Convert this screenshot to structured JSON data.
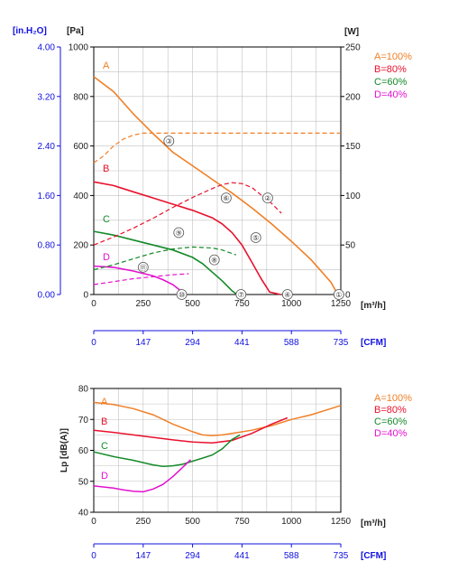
{
  "colors": {
    "A": "#f07f26",
    "B": "#e8112d",
    "C": "#148a28",
    "D": "#e311cf",
    "blue_axis": "#1010e0",
    "grid": "#c0c0c0",
    "text": "#222222"
  },
  "chart_data": [
    {
      "type": "line",
      "title": "",
      "x_unit": "[m³/h]",
      "x_ticks": [
        "0",
        "250",
        "500",
        "750",
        "1000",
        "1250"
      ],
      "xlim": [
        0,
        1250
      ],
      "y_left_unit_inh2o": "[in.H₂O]",
      "y_left_ticks_inh2o": [
        "4.00",
        "3.20",
        "2.40",
        "1.60",
        "0.80",
        "0.00"
      ],
      "y_left_unit_pa": "[Pa]",
      "y_left_ticks_pa": [
        "1000",
        "800",
        "600",
        "400",
        "200",
        "0"
      ],
      "ylim_pa": [
        0,
        1000
      ],
      "y_right_unit": "[W]",
      "y_right_ticks": [
        "250",
        "200",
        "150",
        "100",
        "50",
        "0"
      ],
      "ylim_w": [
        0,
        250
      ],
      "cfm_unit": "[CFM]",
      "cfm_ticks": [
        "0",
        "147",
        "294",
        "441",
        "588",
        "735"
      ],
      "legend": [
        "A=100%",
        "B=80%",
        "C=60%",
        "D=40%"
      ],
      "series": [
        {
          "name": "A",
          "kind": "pressure",
          "x": [
            0,
            100,
            200,
            300,
            400,
            500,
            600,
            700,
            800,
            900,
            1000,
            1100,
            1200,
            1235
          ],
          "y": [
            880,
            820,
            730,
            650,
            575,
            520,
            465,
            410,
            350,
            285,
            215,
            140,
            50,
            0
          ]
        },
        {
          "name": "B",
          "kind": "pressure",
          "x": [
            0,
            100,
            200,
            300,
            400,
            500,
            600,
            650,
            700,
            750,
            800,
            850,
            890,
            945
          ],
          "y": [
            455,
            440,
            415,
            390,
            365,
            340,
            310,
            285,
            250,
            200,
            130,
            60,
            10,
            0
          ]
        },
        {
          "name": "C",
          "kind": "pressure",
          "x": [
            0,
            100,
            200,
            300,
            400,
            500,
            550,
            600,
            650,
            700,
            725
          ],
          "y": [
            255,
            240,
            220,
            200,
            180,
            150,
            125,
            90,
            55,
            15,
            0
          ]
        },
        {
          "name": "D",
          "kind": "pressure",
          "x": [
            0,
            100,
            200,
            300,
            350,
            400,
            440,
            470
          ],
          "y": [
            115,
            110,
            95,
            75,
            60,
            40,
            15,
            0
          ]
        },
        {
          "name": "A",
          "kind": "power",
          "x": [
            0,
            50,
            100,
            150,
            200,
            250,
            300,
            400,
            600,
            800,
            1000,
            1250
          ],
          "y": [
            133,
            140,
            150,
            157,
            161,
            163,
            163,
            163,
            163,
            163,
            163,
            163
          ]
        },
        {
          "name": "B",
          "kind": "power",
          "x": [
            0,
            100,
            200,
            300,
            400,
            500,
            600,
            650,
            700,
            750,
            800,
            850,
            900,
            950
          ],
          "y": [
            50,
            58,
            67,
            77,
            88,
            98,
            107,
            111,
            113,
            112,
            108,
            100,
            92,
            82
          ]
        },
        {
          "name": "C",
          "kind": "power",
          "x": [
            0,
            100,
            200,
            300,
            400,
            500,
            600,
            650,
            720
          ],
          "y": [
            25,
            30,
            36,
            42,
            46,
            48,
            47,
            45,
            40
          ]
        },
        {
          "name": "D",
          "kind": "power",
          "x": [
            0,
            100,
            200,
            300,
            400,
            480
          ],
          "y": [
            10,
            13,
            16,
            18,
            20,
            21
          ]
        }
      ],
      "markers": [
        {
          "label": "①",
          "x": 1240,
          "y": 0,
          "color": "A"
        },
        {
          "label": "②",
          "x": 880,
          "y": 390,
          "color": "A"
        },
        {
          "label": "③",
          "x": 380,
          "y": 620,
          "color": "A"
        },
        {
          "label": "④",
          "x": 980,
          "y": 0,
          "color": "B"
        },
        {
          "label": "⑤",
          "x": 820,
          "y": 230,
          "color": "B"
        },
        {
          "label": "⑥",
          "x": 670,
          "y": 390,
          "color": "B"
        },
        {
          "label": "⑦",
          "x": 745,
          "y": 0,
          "color": "C"
        },
        {
          "label": "⑧",
          "x": 610,
          "y": 140,
          "color": "C"
        },
        {
          "label": "⑨",
          "x": 430,
          "y": 250,
          "color": "C"
        },
        {
          "label": "⑩",
          "x": 445,
          "y": 0,
          "color": "D"
        },
        {
          "label": "⑪",
          "x": 250,
          "y": 110,
          "color": "D"
        }
      ],
      "series_labels": [
        "A",
        "B",
        "C",
        "D"
      ]
    },
    {
      "type": "line",
      "title": "",
      "x_unit": "[m³/h]",
      "x_ticks": [
        "0",
        "250",
        "500",
        "750",
        "1000",
        "1250"
      ],
      "xlim": [
        0,
        1250
      ],
      "ylabel": "Lp [dB(A)]",
      "y_ticks": [
        "80",
        "70",
        "60",
        "50",
        "40"
      ],
      "ylim": [
        40,
        80
      ],
      "cfm_unit": "[CFM]",
      "cfm_ticks": [
        "0",
        "147",
        "294",
        "441",
        "588",
        "735"
      ],
      "legend": [
        "A=100%",
        "B=80%",
        "C=60%",
        "D=40%"
      ],
      "series": [
        {
          "name": "A",
          "x": [
            0,
            100,
            200,
            300,
            400,
            500,
            550,
            600,
            650,
            700,
            800,
            900,
            1000,
            1100,
            1200,
            1250
          ],
          "y": [
            75.5,
            74.8,
            73.5,
            71.5,
            68.5,
            66,
            65,
            64.8,
            65,
            65.5,
            66.5,
            68,
            70,
            71.5,
            73.5,
            74.5
          ]
        },
        {
          "name": "B",
          "x": [
            0,
            100,
            200,
            300,
            400,
            500,
            600,
            700,
            800,
            900,
            980
          ],
          "y": [
            66.5,
            65.8,
            65,
            64.2,
            63.4,
            62.7,
            62.4,
            63.2,
            65.5,
            68.5,
            70.5
          ]
        },
        {
          "name": "C",
          "x": [
            0,
            100,
            200,
            300,
            350,
            400,
            450,
            500,
            550,
            600,
            650,
            700,
            740
          ],
          "y": [
            59.5,
            58,
            56.8,
            55.3,
            54.8,
            55,
            55.5,
            56.5,
            57.5,
            58.5,
            60.5,
            63.5,
            65
          ]
        },
        {
          "name": "D",
          "x": [
            0,
            100,
            150,
            200,
            250,
            300,
            350,
            400,
            450,
            490
          ],
          "y": [
            48.5,
            47.8,
            47.2,
            46.8,
            46.6,
            47.5,
            49,
            51.5,
            54.5,
            57
          ]
        }
      ],
      "series_labels": [
        "A",
        "B",
        "C",
        "D"
      ]
    }
  ]
}
